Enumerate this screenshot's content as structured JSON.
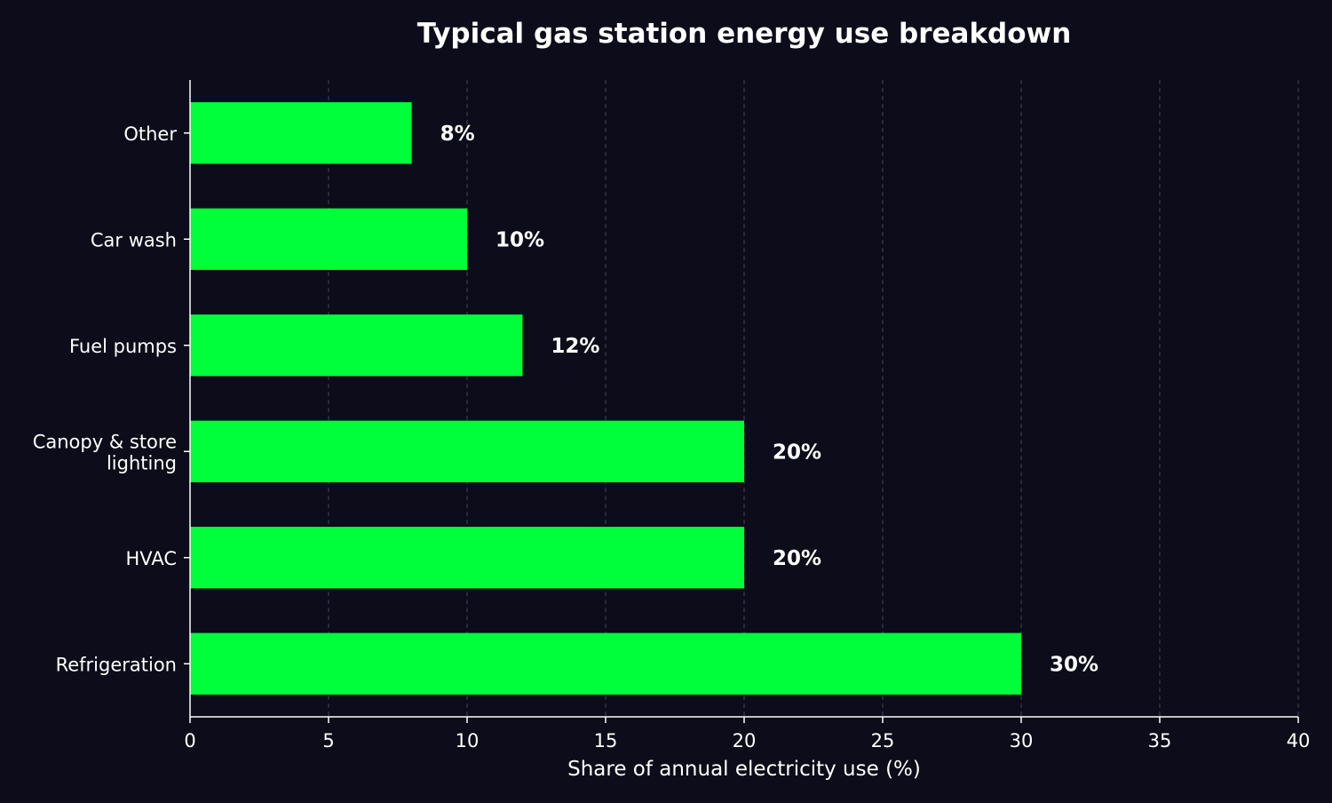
{
  "chart_data": {
    "type": "bar",
    "orientation": "horizontal",
    "title": "Typical gas station energy use breakdown",
    "xlabel": "Share of annual electricity use (%)",
    "ylabel": "",
    "xlim": [
      0,
      40
    ],
    "xticks": [
      0,
      5,
      10,
      15,
      20,
      25,
      30,
      35,
      40
    ],
    "grid": "x-dashed",
    "categories": [
      [
        "Other"
      ],
      [
        "Car wash"
      ],
      [
        "Fuel pumps"
      ],
      [
        "Canopy & store",
        "lighting"
      ],
      [
        "HVAC"
      ],
      [
        "Refrigeration"
      ]
    ],
    "values": [
      8,
      10,
      12,
      20,
      20,
      30
    ],
    "data_labels": [
      "8%",
      "10%",
      "12%",
      "20%",
      "20%",
      "30%"
    ]
  },
  "colors": {
    "background": "#0c0c1a",
    "bar": "#00ff3b",
    "text": "#ffffff",
    "axis": "#ffffff",
    "grid": "#3a3a55"
  }
}
